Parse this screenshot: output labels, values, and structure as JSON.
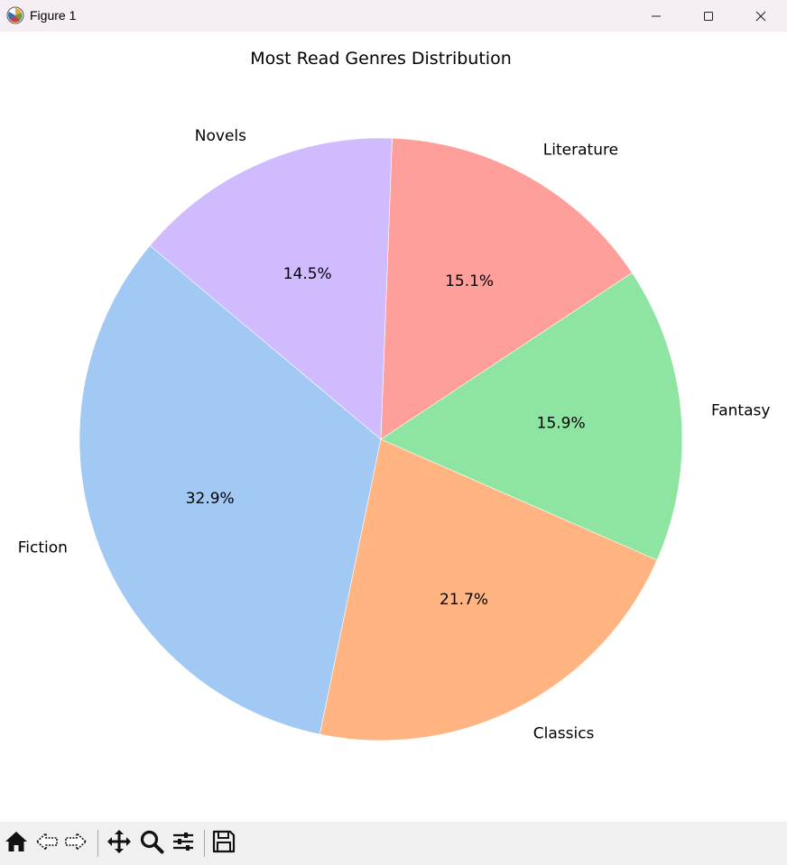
{
  "window": {
    "title": "Figure 1",
    "app_icon": "matplotlib-icon",
    "controls": [
      "minimize-icon",
      "maximize-icon",
      "close-icon"
    ]
  },
  "toolbar": {
    "buttons": [
      "home-icon",
      "back-icon",
      "forward-icon",
      "pan-icon",
      "zoom-icon",
      "configure-subplots-icon",
      "save-icon"
    ]
  },
  "chart_data": {
    "type": "pie",
    "title": "Most Read Genres Distribution",
    "labels": [
      "Fiction",
      "Classics",
      "Fantasy",
      "Literature",
      "Novels"
    ],
    "values": [
      32.9,
      21.7,
      15.9,
      15.1,
      14.5
    ],
    "pct_labels": [
      "32.9%",
      "21.7%",
      "15.9%",
      "15.1%",
      "14.5%"
    ],
    "colors": [
      "#a1c9f4",
      "#ffb482",
      "#8de5a1",
      "#ff9f9b",
      "#d0bbff"
    ],
    "start_angle_deg": 140,
    "direction": "counterclockwise"
  }
}
